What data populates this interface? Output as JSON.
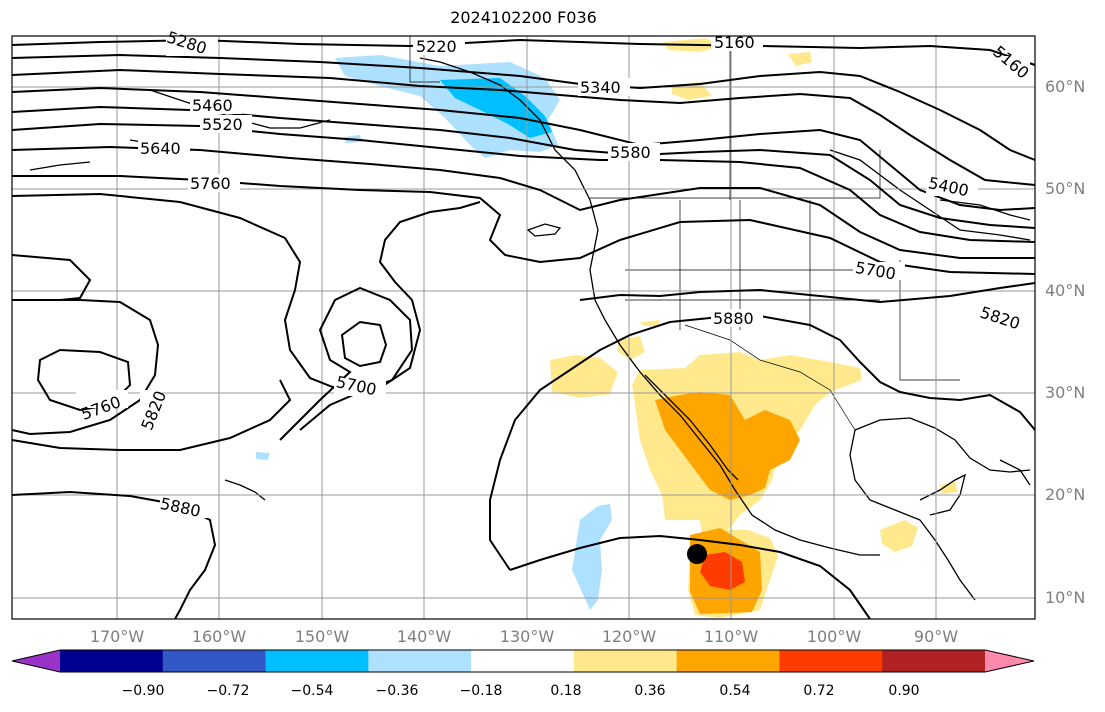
{
  "title": "2024102200 F036",
  "lat_labels": [
    "60°N",
    "50°N",
    "40°N",
    "30°N",
    "20°N",
    "10°N"
  ],
  "lon_labels": [
    "170°W",
    "160°W",
    "150°W",
    "140°W",
    "130°W",
    "120°W",
    "110°W",
    "100°W",
    "90°W"
  ],
  "contour_labels": [
    "5220",
    "5160",
    "5280",
    "5340",
    "5460",
    "5520",
    "5640",
    "5580",
    "5760",
    "5400",
    "5700",
    "5820",
    "5880",
    "5760",
    "5820",
    "5700",
    "5880",
    "5160"
  ],
  "colorbar": {
    "ticks": [
      "−0.90",
      "−0.72",
      "−0.54",
      "−0.36",
      "−0.18",
      "0.18",
      "0.36",
      "0.54",
      "0.72",
      "0.90"
    ],
    "colors": [
      "#9b32c8",
      "#000090",
      "#3258c8",
      "#00bfff",
      "#aee0ff",
      "#ffffff",
      "#ffe98c",
      "#ffa500",
      "#ff3c00",
      "#b22222",
      "#ff89ad"
    ]
  }
}
